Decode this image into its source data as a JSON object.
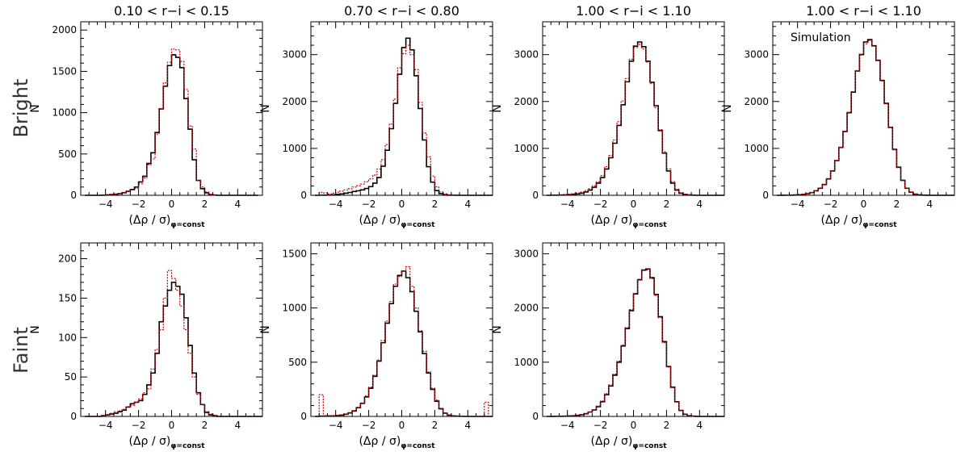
{
  "row_labels": [
    "Bright",
    "Faint"
  ],
  "chart_data": [
    {
      "type": "histogram",
      "row": "Bright",
      "title": "0.10 < r−i < 0.15",
      "xlabel": "(Δρ / σ)",
      "xlabel_sub": "φ=const",
      "ylabel": "N",
      "xlim": [
        -5.5,
        5.5
      ],
      "ylim": [
        0,
        2100
      ],
      "xticks": [
        -4,
        -2,
        0,
        2,
        4
      ],
      "yticks": [
        0,
        500,
        1000,
        1500,
        2000
      ],
      "bin_start": -5.25,
      "bin_width": 0.25,
      "series": [
        {
          "name": "black",
          "color": "#000000",
          "style": "solid",
          "values": [
            0,
            0,
            0,
            0,
            2,
            4,
            8,
            13,
            20,
            31,
            48,
            70,
            100,
            162,
            230,
            385,
            515,
            760,
            1045,
            1320,
            1570,
            1700,
            1670,
            1545,
            1170,
            800,
            430,
            180,
            80,
            30,
            8,
            3,
            0,
            0,
            0,
            0,
            0,
            0,
            0,
            0,
            0,
            0
          ]
        },
        {
          "name": "red",
          "color": "#cc0000",
          "style": "dotted",
          "values": [
            0,
            0,
            0,
            0,
            4,
            7,
            12,
            16,
            22,
            35,
            50,
            65,
            85,
            140,
            210,
            370,
            440,
            740,
            1050,
            1360,
            1610,
            1770,
            1760,
            1620,
            1280,
            840,
            560,
            180,
            100,
            40,
            13,
            4,
            0,
            0,
            0,
            0,
            0,
            0,
            0,
            0,
            0,
            0
          ]
        }
      ]
    },
    {
      "type": "histogram",
      "row": "Bright",
      "title": "0.70 < r−i < 0.80",
      "xlabel": "(Δρ / σ)",
      "xlabel_sub": "φ=const",
      "ylabel": "N",
      "xlim": [
        -5.5,
        5.5
      ],
      "ylim": [
        0,
        3700
      ],
      "xticks": [
        -4,
        -2,
        0,
        2,
        4
      ],
      "yticks": [
        0,
        1000,
        2000,
        3000
      ],
      "bin_start": -5.25,
      "bin_width": 0.25,
      "series": [
        {
          "name": "black",
          "color": "#000000",
          "style": "solid",
          "values": [
            0,
            2,
            4,
            6,
            10,
            18,
            30,
            45,
            60,
            80,
            95,
            115,
            145,
            185,
            260,
            380,
            620,
            960,
            1420,
            1960,
            2580,
            3150,
            3350,
            3100,
            2550,
            1850,
            1180,
            610,
            280,
            100,
            35,
            12,
            4,
            2,
            0,
            0,
            0,
            0,
            0,
            0,
            0,
            0,
            0,
            0
          ]
        },
        {
          "name": "red",
          "color": "#cc0000",
          "style": "dotted",
          "values": [
            0,
            60,
            50,
            30,
            45,
            65,
            90,
            115,
            140,
            175,
            205,
            240,
            290,
            350,
            430,
            560,
            760,
            1080,
            1520,
            2050,
            2720,
            3020,
            3200,
            3000,
            2680,
            1980,
            1330,
            820,
            410,
            180,
            70,
            30,
            12,
            5,
            2,
            0,
            0,
            0,
            0,
            0,
            0,
            0,
            0,
            0
          ]
        }
      ]
    },
    {
      "type": "histogram",
      "row": "Bright",
      "title": "1.00 < r−i < 1.10",
      "xlabel": "(Δρ / σ)",
      "xlabel_sub": "φ=const",
      "ylabel": "N",
      "xlim": [
        -5.5,
        5.5
      ],
      "ylim": [
        0,
        3700
      ],
      "xticks": [
        -4,
        -2,
        0,
        2,
        4
      ],
      "yticks": [
        0,
        1000,
        2000,
        3000
      ],
      "bin_start": -5.25,
      "bin_width": 0.25,
      "series": [
        {
          "name": "black",
          "color": "#000000",
          "style": "solid",
          "values": [
            0,
            2,
            3,
            5,
            8,
            12,
            18,
            28,
            45,
            70,
            110,
            170,
            260,
            380,
            560,
            800,
            1110,
            1490,
            1930,
            2420,
            2860,
            3180,
            3270,
            3170,
            2860,
            2410,
            1910,
            1380,
            900,
            520,
            260,
            110,
            45,
            18,
            7,
            3,
            0,
            0,
            0,
            0,
            0,
            0,
            0,
            0
          ]
        },
        {
          "name": "red",
          "color": "#cc0000",
          "style": "dotted",
          "values": [
            0,
            5,
            8,
            12,
            18,
            25,
            35,
            50,
            70,
            100,
            140,
            200,
            290,
            420,
            610,
            850,
            1180,
            1570,
            2010,
            2490,
            2900,
            3150,
            3220,
            3120,
            2840,
            2380,
            1870,
            1400,
            930,
            560,
            290,
            130,
            55,
            22,
            9,
            4,
            0,
            0,
            0,
            0,
            0,
            0,
            0,
            0
          ]
        }
      ]
    },
    {
      "type": "histogram",
      "row": "Bright",
      "title": "1.00 < r−i < 1.10",
      "annotation": "Simulation",
      "xlabel": "(Δρ / σ)",
      "xlabel_sub": "φ=const",
      "ylabel": "N",
      "xlim": [
        -5.5,
        5.5
      ],
      "ylim": [
        0,
        3700
      ],
      "xticks": [
        -4,
        -2,
        0,
        2,
        4
      ],
      "yticks": [
        0,
        1000,
        2000,
        3000
      ],
      "bin_start": -5.25,
      "bin_width": 0.25,
      "series": [
        {
          "name": "black",
          "color": "#000000",
          "style": "solid",
          "values": [
            0,
            1,
            2,
            4,
            7,
            12,
            20,
            34,
            58,
            95,
            150,
            230,
            350,
            520,
            740,
            1020,
            1360,
            1760,
            2200,
            2650,
            3000,
            3270,
            3320,
            3190,
            2880,
            2450,
            1960,
            1450,
            980,
            600,
            320,
            150,
            65,
            25,
            9,
            3,
            1,
            0,
            0,
            0,
            0,
            0,
            0,
            0
          ]
        },
        {
          "name": "red",
          "color": "#cc0000",
          "style": "dotted",
          "values": [
            0,
            1,
            2,
            4,
            7,
            12,
            21,
            35,
            60,
            98,
            155,
            235,
            355,
            525,
            745,
            1025,
            1365,
            1770,
            2210,
            2660,
            3010,
            3230,
            3300,
            3180,
            2870,
            2440,
            1950,
            1440,
            970,
            590,
            315,
            148,
            63,
            24,
            9,
            3,
            1,
            0,
            0,
            0,
            0,
            0,
            0,
            0
          ]
        }
      ]
    },
    {
      "type": "histogram",
      "row": "Faint",
      "title": "",
      "xlabel": "(Δρ / σ)",
      "xlabel_sub": "φ=const",
      "ylabel": "N",
      "xlim": [
        -5.5,
        5.5
      ],
      "ylim": [
        0,
        220
      ],
      "xticks": [
        -4,
        -2,
        0,
        2,
        4
      ],
      "yticks": [
        0,
        50,
        100,
        150,
        200
      ],
      "bin_start": -5.25,
      "bin_width": 0.25,
      "series": [
        {
          "name": "black",
          "color": "#000000",
          "style": "solid",
          "values": [
            0,
            0,
            0,
            0,
            1,
            2,
            3,
            4,
            6,
            8,
            12,
            16,
            18,
            20,
            28,
            40,
            55,
            80,
            120,
            140,
            160,
            170,
            165,
            155,
            125,
            90,
            55,
            30,
            15,
            5,
            2,
            1,
            0,
            0,
            0,
            0,
            0,
            0,
            0,
            0,
            0,
            0,
            0,
            0
          ]
        },
        {
          "name": "red",
          "color": "#cc0000",
          "style": "dotted",
          "values": [
            0,
            0,
            0,
            0,
            1,
            2,
            4,
            6,
            7,
            9,
            12,
            14,
            18,
            22,
            30,
            35,
            60,
            85,
            110,
            150,
            185,
            175,
            160,
            140,
            110,
            80,
            50,
            28,
            15,
            6,
            3,
            1,
            0,
            0,
            0,
            0,
            0,
            0,
            0,
            0,
            0,
            0,
            0,
            0
          ]
        }
      ]
    },
    {
      "type": "histogram",
      "row": "Faint",
      "title": "",
      "xlabel": "(Δρ / σ)",
      "xlabel_sub": "φ=const",
      "ylabel": "N",
      "xlim": [
        -5.5,
        5.5
      ],
      "ylim": [
        0,
        1600
      ],
      "xticks": [
        -4,
        -2,
        0,
        2,
        4
      ],
      "yticks": [
        0,
        500,
        1000,
        1500
      ],
      "bin_start": -5.25,
      "bin_width": 0.25,
      "series": [
        {
          "name": "black",
          "color": "#000000",
          "style": "solid",
          "values": [
            0,
            2,
            3,
            4,
            5,
            8,
            12,
            20,
            32,
            50,
            80,
            120,
            180,
            260,
            370,
            510,
            680,
            860,
            1040,
            1200,
            1300,
            1340,
            1280,
            1150,
            970,
            780,
            580,
            400,
            250,
            140,
            70,
            30,
            12,
            5,
            2,
            1,
            0,
            0,
            0,
            0,
            0,
            0,
            0,
            0
          ]
        },
        {
          "name": "red",
          "color": "#cc0000",
          "style": "dotted",
          "values": [
            0,
            200,
            5,
            5,
            6,
            10,
            15,
            22,
            35,
            55,
            85,
            125,
            190,
            270,
            380,
            520,
            700,
            880,
            1060,
            1220,
            1290,
            1340,
            1380,
            1200,
            1000,
            790,
            600,
            410,
            260,
            150,
            75,
            32,
            14,
            6,
            3,
            2,
            1,
            0,
            0,
            0,
            0,
            130,
            0,
            0
          ]
        }
      ]
    },
    {
      "type": "histogram",
      "row": "Faint",
      "title": "",
      "xlabel": "(Δρ / σ)",
      "xlabel_sub": "φ=const",
      "ylabel": "N",
      "xlim": [
        -5.5,
        5.5
      ],
      "ylim": [
        0,
        3200
      ],
      "xticks": [
        -4,
        -2,
        0,
        2,
        4
      ],
      "yticks": [
        0,
        1000,
        2000,
        3000
      ],
      "bin_start": -5.25,
      "bin_width": 0.25,
      "series": [
        {
          "name": "black",
          "color": "#000000",
          "style": "solid",
          "values": [
            0,
            1,
            2,
            3,
            5,
            8,
            12,
            20,
            32,
            50,
            80,
            120,
            180,
            270,
            400,
            560,
            760,
            1000,
            1300,
            1620,
            1950,
            2260,
            2520,
            2700,
            2720,
            2560,
            2250,
            1840,
            1380,
            920,
            540,
            270,
            110,
            40,
            12,
            4,
            1,
            0,
            0,
            0,
            0,
            0,
            0,
            0
          ]
        },
        {
          "name": "red",
          "color": "#cc0000",
          "style": "dotted",
          "values": [
            0,
            1,
            2,
            4,
            6,
            9,
            14,
            22,
            35,
            55,
            85,
            125,
            190,
            285,
            420,
            580,
            780,
            1020,
            1320,
            1640,
            1970,
            2270,
            2530,
            2690,
            2700,
            2540,
            2230,
            1820,
            1360,
            910,
            530,
            265,
            108,
            40,
            13,
            4,
            1,
            0,
            0,
            0,
            0,
            0,
            0,
            0
          ]
        }
      ]
    }
  ]
}
